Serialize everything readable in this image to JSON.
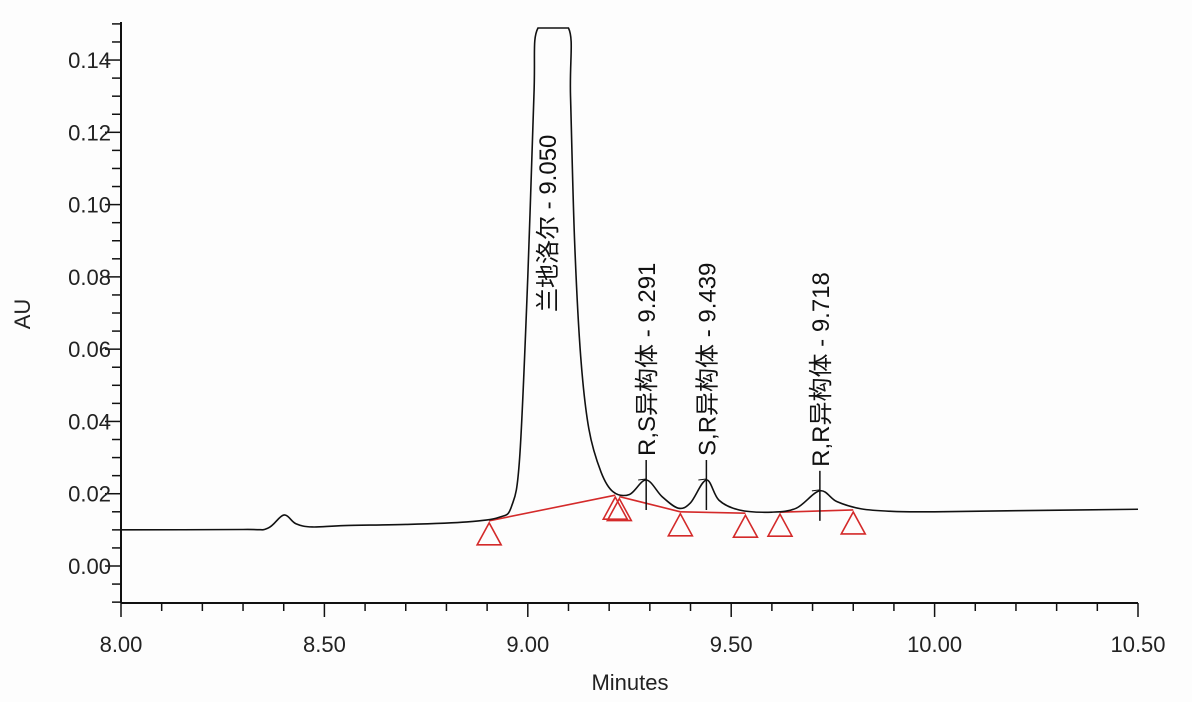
{
  "chart_data": {
    "type": "line",
    "title": "",
    "xlabel": "Minutes",
    "ylabel": "AU",
    "xlim": [
      8.0,
      10.5
    ],
    "ylim": [
      -0.01,
      0.15
    ],
    "grid": false,
    "x_ticks": [
      "8.00",
      "8.50",
      "9.00",
      "9.50",
      "10.00",
      "10.50"
    ],
    "y_ticks": [
      "0.00",
      "0.02",
      "0.04",
      "0.06",
      "0.08",
      "0.10",
      "0.12",
      "0.14"
    ],
    "colors": {
      "trace": "#111111",
      "baseline": "#d42a2a",
      "markers": "#d42a2a"
    },
    "trace": [
      [
        8.0,
        0.01
      ],
      [
        8.3,
        0.0101
      ],
      [
        8.36,
        0.0104
      ],
      [
        8.4,
        0.0141
      ],
      [
        8.43,
        0.0117
      ],
      [
        8.47,
        0.0108
      ],
      [
        8.55,
        0.0112
      ],
      [
        8.7,
        0.0115
      ],
      [
        8.85,
        0.0122
      ],
      [
        8.93,
        0.0135
      ],
      [
        8.96,
        0.0165
      ],
      [
        8.98,
        0.03
      ],
      [
        9.0,
        0.08
      ],
      [
        9.015,
        0.13
      ],
      [
        9.025,
        0.16
      ],
      [
        9.1,
        0.16
      ],
      [
        9.105,
        0.13
      ],
      [
        9.115,
        0.09
      ],
      [
        9.13,
        0.058
      ],
      [
        9.15,
        0.038
      ],
      [
        9.18,
        0.026
      ],
      [
        9.21,
        0.0205
      ],
      [
        9.25,
        0.0198
      ],
      [
        9.291,
        0.0238
      ],
      [
        9.33,
        0.0192
      ],
      [
        9.37,
        0.016
      ],
      [
        9.4,
        0.0175
      ],
      [
        9.439,
        0.0238
      ],
      [
        9.47,
        0.0182
      ],
      [
        9.52,
        0.0155
      ],
      [
        9.6,
        0.0149
      ],
      [
        9.66,
        0.016
      ],
      [
        9.718,
        0.0208
      ],
      [
        9.76,
        0.0178
      ],
      [
        9.82,
        0.0158
      ],
      [
        9.9,
        0.0151
      ],
      [
        10.0,
        0.015
      ],
      [
        10.2,
        0.0153
      ],
      [
        10.5,
        0.0157
      ]
    ],
    "peaks": [
      {
        "label": "兰地洛尔 - 9.050",
        "rt": 9.05
      },
      {
        "label": "R,S异构体 - 9.291",
        "rt": 9.291,
        "apex": 0.0238
      },
      {
        "label": "S,R异构体 - 9.439",
        "rt": 9.439,
        "apex": 0.0238
      },
      {
        "label": "R,R异构体 - 9.718",
        "rt": 9.718,
        "apex": 0.0208
      }
    ],
    "integration_baselines": [
      [
        [
          8.905,
          0.0125
        ],
        [
          9.215,
          0.0196
        ]
      ],
      [
        [
          9.225,
          0.0192
        ],
        [
          9.375,
          0.015
        ]
      ],
      [
        [
          9.375,
          0.015
        ],
        [
          9.535,
          0.0146
        ]
      ],
      [
        [
          9.62,
          0.0149
        ],
        [
          9.8,
          0.0155
        ]
      ]
    ],
    "markers": [
      [
        8.905,
        0.0125
      ],
      [
        9.215,
        0.0196
      ],
      [
        9.225,
        0.0192
      ],
      [
        9.375,
        0.015
      ],
      [
        9.535,
        0.0146
      ],
      [
        9.62,
        0.0149
      ],
      [
        9.8,
        0.0155
      ]
    ]
  }
}
